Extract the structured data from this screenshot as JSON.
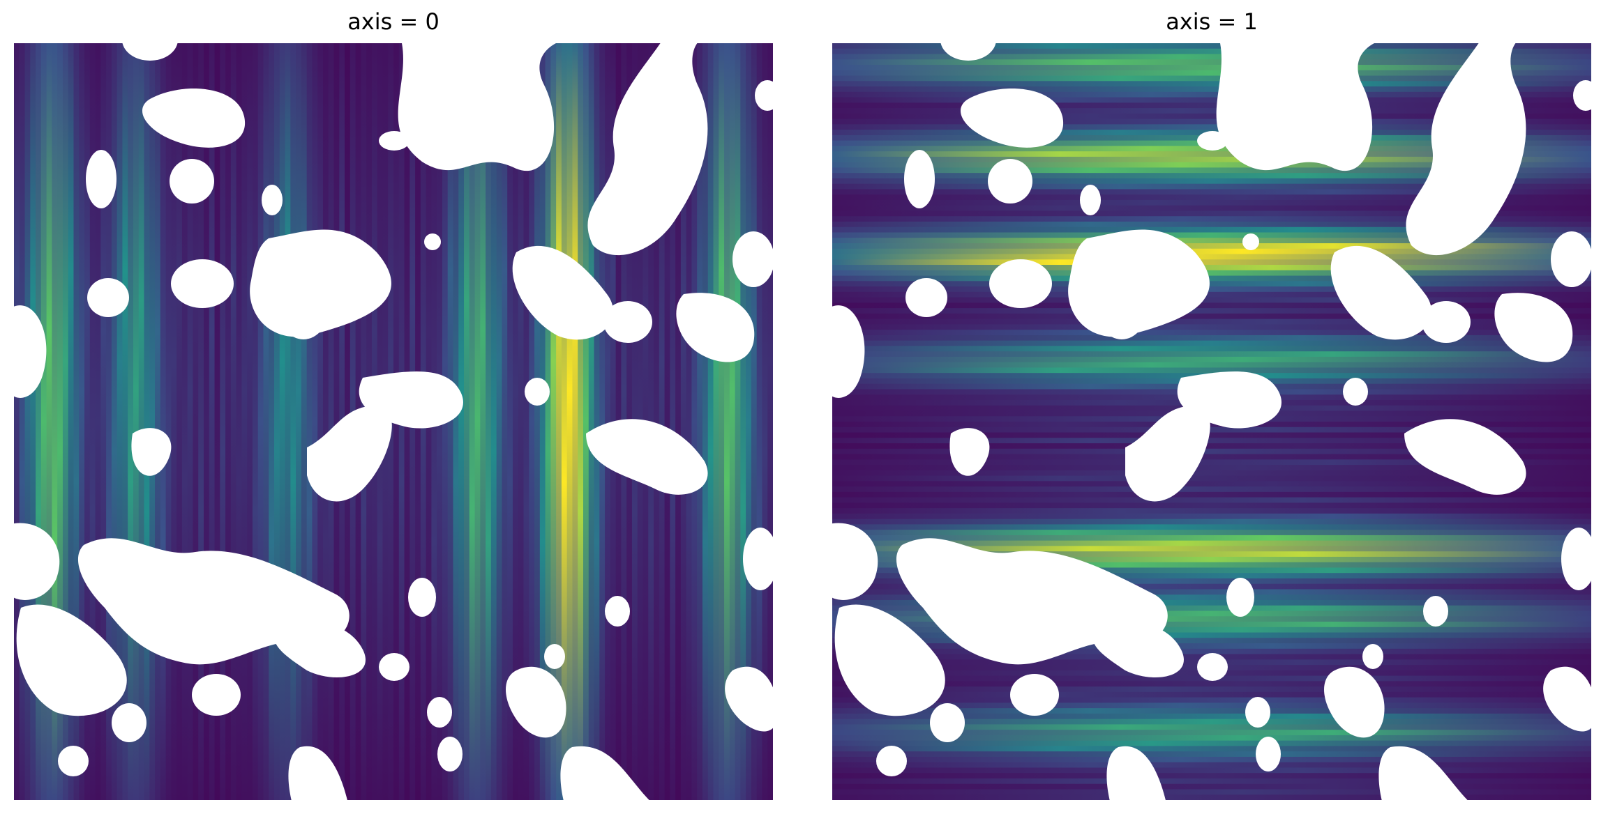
{
  "chart_data": [
    {
      "type": "heatmap",
      "title": "axis = 0",
      "xlabel": "",
      "ylabel": "",
      "colormap": "viridis",
      "axes_visible": false,
      "grid": false,
      "legend": "none",
      "mask_color": "#ffffff",
      "stripe_direction": "vertical",
      "peak_columns": [
        {
          "position": 0.05,
          "peak": 0.62
        },
        {
          "position": 0.16,
          "peak": 0.45
        },
        {
          "position": 0.36,
          "peak": 0.38
        },
        {
          "position": 0.61,
          "peak": 0.55
        },
        {
          "position": 0.73,
          "peak": 0.95
        },
        {
          "position": 0.94,
          "peak": 0.6
        }
      ]
    },
    {
      "type": "heatmap",
      "title": "axis = 1",
      "xlabel": "",
      "ylabel": "",
      "colormap": "viridis",
      "axes_visible": false,
      "grid": false,
      "legend": "none",
      "mask_color": "#ffffff",
      "stripe_direction": "horizontal",
      "peak_rows": [
        {
          "position": 0.03,
          "peak": 0.6
        },
        {
          "position": 0.15,
          "peak": 0.75
        },
        {
          "position": 0.28,
          "peak": 0.95
        },
        {
          "position": 0.42,
          "peak": 0.5
        },
        {
          "position": 0.67,
          "peak": 0.8
        },
        {
          "position": 0.76,
          "peak": 0.55
        },
        {
          "position": 0.91,
          "peak": 0.5
        }
      ]
    }
  ],
  "colors": {
    "viridis_low": "#440154",
    "viridis_mid": "#21918c",
    "viridis_high": "#fde725",
    "background": "#ffffff"
  }
}
